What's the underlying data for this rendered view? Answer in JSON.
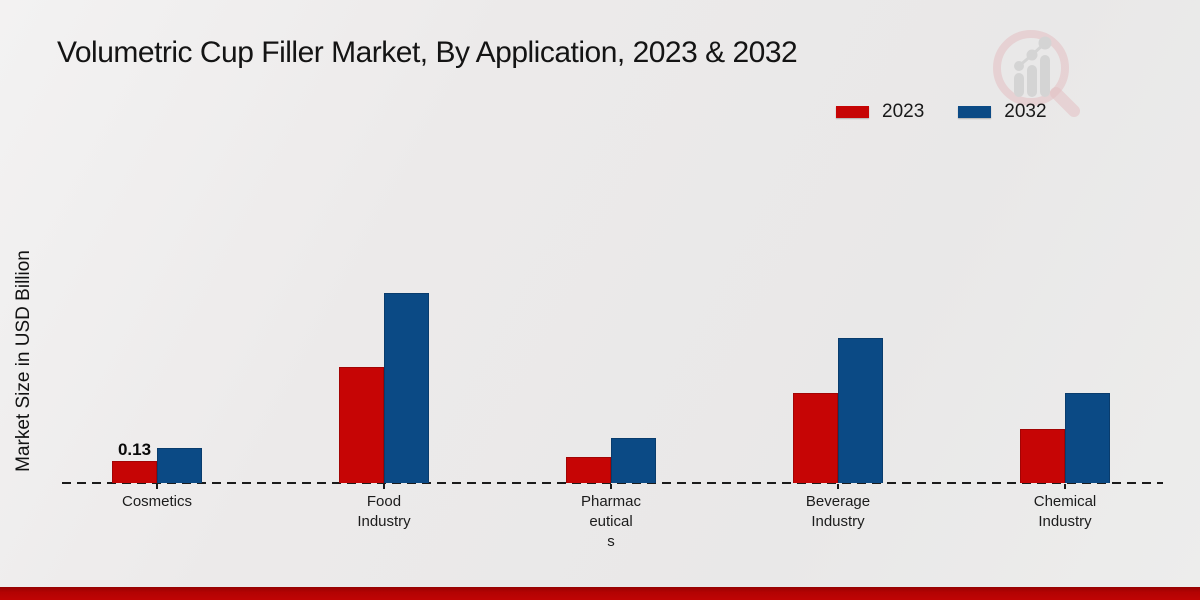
{
  "page": {
    "title": "Volumetric Cup Filler Market, By Application, 2023 & 2032"
  },
  "watermark": {
    "icon": "magnifier-growth-chart-logo"
  },
  "colors": {
    "series_2023": "#c60505",
    "series_2032": "#0b4a85",
    "footer_accent": "#b30303",
    "baseline": "#1b1b1b"
  },
  "chart_data": {
    "type": "bar",
    "title": "Volumetric Cup Filler Market, By Application, 2023 & 2032",
    "xlabel": "",
    "ylabel": "Market Size in USD Billion",
    "categories": [
      "Cosmetics",
      "Food Industry",
      "Pharmaceuticals",
      "Beverage Industry",
      "Chemical Industry"
    ],
    "category_label_lines": [
      [
        "Cosmetics"
      ],
      [
        "Food",
        "Industry"
      ],
      [
        "Pharmac",
        "eutical",
        "s"
      ],
      [
        "Beverage",
        "Industry"
      ],
      [
        "Chemical",
        "Industry"
      ]
    ],
    "series": [
      {
        "name": "2023",
        "color": "#c60505",
        "values": [
          0.13,
          0.67,
          0.15,
          0.52,
          0.31
        ]
      },
      {
        "name": "2032",
        "color": "#0b4a85",
        "values": [
          0.2,
          1.1,
          0.26,
          0.84,
          0.52
        ]
      }
    ],
    "annotations": [
      {
        "category_index": 0,
        "series_index": 0,
        "text": "0.13"
      }
    ],
    "ylim": [
      0,
      1.2
    ],
    "grid": false,
    "legend_position": "top-right",
    "baseline_style": "dashed",
    "y_axis_ticks_visible": false
  }
}
